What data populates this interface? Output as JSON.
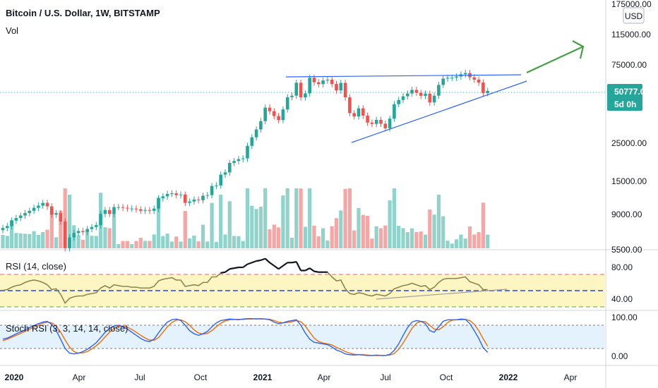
{
  "header": {
    "title": "Bitcoin / U.S. Dollar, 1W, BITSTAMP",
    "vol_label": "Vol",
    "currency": "USD"
  },
  "price_tag": {
    "price": "50777.00",
    "countdown": "5d 0h"
  },
  "colors": {
    "up": "#26a69a",
    "down": "#ef5350",
    "vol_up": "#8fd3cb",
    "vol_down": "#f6a6a4",
    "trend": "#2962ff",
    "arrow": "#43a047",
    "rsi_band": "#fdf6c3",
    "rsi_line": "#8b8550",
    "stoch_band": "#e3f2fd",
    "stoch_k": "#2962ff",
    "stoch_d": "#ef6c00"
  },
  "chart_data": [
    {
      "type": "candlestick",
      "title": "Bitcoin / U.S. Dollar, 1W, BITSTAMP",
      "y_scale": "log",
      "y_ticks": [
        "175000.00",
        "115000.00",
        "75000.00",
        "25000.00",
        "15000.00",
        "9000.00",
        "5500.00"
      ],
      "x_ticks": [
        "2020",
        "Apr",
        "Jul",
        "Oct",
        "2021",
        "Apr",
        "Jul",
        "Oct",
        "2022",
        "Apr"
      ],
      "last_price": 50777,
      "closes": [
        7200,
        7400,
        8000,
        8300,
        8600,
        8900,
        9200,
        9600,
        9900,
        10300,
        9800,
        8700,
        8900,
        7900,
        5400,
        6300,
        6700,
        6900,
        6800,
        7100,
        7300,
        7500,
        8800,
        9300,
        8800,
        9700,
        9700,
        9600,
        9500,
        9500,
        9400,
        9200,
        9300,
        9200,
        9500,
        11000,
        11300,
        11700,
        11800,
        11500,
        11600,
        10300,
        10500,
        10800,
        10700,
        11400,
        11500,
        13100,
        13200,
        15400,
        15900,
        18200,
        18700,
        19200,
        19400,
        23200,
        26200,
        29300,
        33000,
        40000,
        38000,
        35500,
        33500,
        39000,
        46400,
        47400,
        57000,
        46300,
        49000,
        61200,
        57400,
        55900,
        58900,
        59600,
        56000,
        51100,
        56900,
        46300,
        37000,
        35300,
        39600,
        35700,
        32300,
        31700,
        33600,
        31800,
        29800,
        34200,
        42000,
        44600,
        47000,
        48900,
        51500,
        49400,
        47300,
        48800,
        43100,
        47400,
        55300,
        60500,
        61200,
        61300,
        62300,
        64300,
        65500,
        61600,
        59600,
        57200,
        49200,
        50777
      ]
    },
    {
      "type": "line",
      "title": "RSI (14, close)",
      "y_ticks": [
        "80.00",
        "40.00"
      ],
      "levels": [
        70,
        50,
        30
      ],
      "values": [
        51,
        52,
        55,
        57,
        58,
        61,
        63,
        64,
        63,
        61,
        58,
        52,
        53,
        46,
        35,
        41,
        43,
        44,
        44,
        46,
        47,
        48,
        54,
        57,
        54,
        58,
        57,
        56,
        56,
        55,
        55,
        54,
        54,
        54,
        56,
        63,
        65,
        66,
        67,
        64,
        64,
        56,
        57,
        58,
        57,
        61,
        61,
        68,
        68,
        73,
        74,
        78,
        79,
        80,
        80,
        84,
        86,
        88,
        89,
        91,
        86,
        82,
        78,
        82,
        86,
        86,
        87,
        76,
        76,
        79,
        75,
        74,
        74,
        74,
        68,
        63,
        64,
        53,
        47,
        46,
        48,
        47,
        45,
        44,
        46,
        45,
        44,
        47,
        53,
        55,
        57,
        58,
        60,
        58,
        56,
        57,
        52,
        55,
        61,
        65,
        66,
        66,
        66,
        67,
        68,
        62,
        60,
        58,
        52,
        52
      ]
    },
    {
      "type": "line",
      "title": "Stoch RSI (3, 3, 14, 14, close)",
      "y_ticks": [
        "100.00",
        "0.00"
      ],
      "levels": [
        80,
        20
      ],
      "series": [
        {
          "values": [
            44,
            47,
            52,
            58,
            63,
            68,
            74,
            79,
            84,
            88,
            90,
            82,
            66,
            44,
            20,
            8,
            6,
            8,
            12,
            18,
            26,
            35,
            48,
            62,
            72,
            78,
            80,
            76,
            70,
            62,
            54,
            46,
            40,
            38,
            44,
            60,
            76,
            88,
            94,
            96,
            92,
            80,
            66,
            58,
            54,
            58,
            64,
            76,
            86,
            92,
            94,
            96,
            95,
            94,
            96,
            97,
            97,
            96,
            97,
            96,
            94,
            88,
            84,
            86,
            90,
            92,
            94,
            80,
            60,
            44,
            36,
            34,
            32,
            30,
            24,
            16,
            12,
            6,
            4,
            3,
            4,
            3,
            2,
            2,
            3,
            2,
            2,
            5,
            15,
            32,
            54,
            74,
            88,
            92,
            90,
            84,
            66,
            62,
            76,
            90,
            94,
            94,
            94,
            96,
            95,
            84,
            66,
            46,
            22,
            10
          ]
        },
        {
          "values": [
            40,
            44,
            49,
            54,
            59,
            64,
            70,
            75,
            80,
            85,
            88,
            86,
            78,
            62,
            42,
            24,
            12,
            8,
            9,
            12,
            19,
            27,
            37,
            50,
            62,
            72,
            77,
            78,
            75,
            69,
            62,
            54,
            47,
            42,
            41,
            48,
            62,
            76,
            87,
            93,
            94,
            89,
            80,
            68,
            60,
            57,
            59,
            66,
            76,
            85,
            91,
            94,
            95,
            95,
            95,
            96,
            96,
            97,
            96,
            96,
            95,
            92,
            88,
            86,
            87,
            89,
            92,
            89,
            78,
            62,
            47,
            38,
            34,
            32,
            29,
            23,
            18,
            12,
            8,
            5,
            4,
            4,
            3,
            2,
            2,
            2,
            2,
            3,
            7,
            18,
            34,
            53,
            72,
            85,
            90,
            89,
            80,
            70,
            68,
            76,
            87,
            93,
            94,
            94,
            95,
            92,
            82,
            66,
            45,
            26
          ]
        }
      ]
    }
  ]
}
